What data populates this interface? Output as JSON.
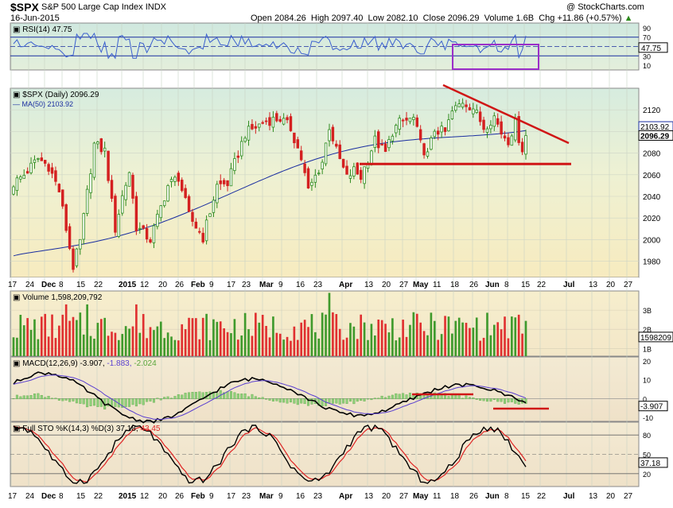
{
  "header": {
    "symbol": "$SPX",
    "name": "S&P 500 Large Cap Index",
    "exchange": "INDX",
    "date": "16-Jun-2015",
    "watermark": "@ StockCharts.com",
    "open_label": "Open",
    "open": "2084.26",
    "high_label": "High",
    "high": "2097.40",
    "low_label": "Low",
    "low": "2082.10",
    "close_label": "Close",
    "close": "2096.29",
    "volume_label": "Volume",
    "volume": "1.6B",
    "chg_label": "Chg",
    "chg": "+11.86 (+0.57%)",
    "chg_arrow": "▲"
  },
  "colors": {
    "up": "#2e8b1e",
    "down": "#d42020",
    "ma": "#1a2ea0",
    "rsi": "#3a5fcf",
    "trend": "#d01616",
    "highlight": "#9b2fc9",
    "price_bg_top": "#dbeee0",
    "price_bg_bottom": "#f6ecc4",
    "panel_bg": "#f2ead8"
  },
  "panels": {
    "rsi": {
      "label": "RSI(14) 47.75",
      "value": "47.75",
      "ticks": [
        "90",
        "70",
        "50",
        "30",
        "10"
      ]
    },
    "price": {
      "label": "$SPX (Daily) 2096.29",
      "ma_label": "MA(50) 2103.92",
      "ma_value": "2103.92",
      "close_value": "2096.29",
      "ticks": [
        "2120",
        "2100",
        "2080",
        "2060",
        "2040",
        "2020",
        "2000",
        "1980"
      ]
    },
    "volume": {
      "label": "Volume 1,598,209,792",
      "value": "1598209",
      "ticks": [
        "3B",
        "2B",
        "1B"
      ]
    },
    "macd": {
      "label": "MACD(12,26,9) -3.907,",
      "signal": "-1.883,",
      "hist": "-2.024",
      "value": "-3.907",
      "ticks": [
        "20",
        "10",
        "0",
        "-10"
      ]
    },
    "sto": {
      "label": "Full STO %K(14,3) %D(3) 37.18,",
      "d_value": "43.45",
      "value": "37.18",
      "ticks": [
        "80",
        "50",
        "20"
      ]
    }
  },
  "xaxis_labels": [
    "17",
    "24",
    "Dec",
    "8",
    "15",
    "22",
    "2015",
    "12",
    "20",
    "26",
    "Feb",
    "9",
    "17",
    "23",
    "Mar",
    "9",
    "16",
    "23",
    "Apr",
    "13",
    "20",
    "27",
    "May",
    "11",
    "18",
    "26",
    "Jun",
    "8",
    "15",
    "22",
    "Jul",
    "13",
    "20",
    "27"
  ],
  "chart_data": {
    "type": "candlestick",
    "title": "$SPX S&P 500 Large Cap Index INDX",
    "price_range": [
      1965,
      2140
    ],
    "ma50_range": [
      1985,
      2111
    ],
    "support_level": 2070,
    "resistance_line": {
      "from": {
        "date": "2015-05-15",
        "value": 2139
      },
      "to": {
        "date": "2015-06-26",
        "value": 2094
      }
    },
    "ohlc_key": [
      [
        "2014-11-28",
        2062
      ],
      [
        "2014-12-05",
        2076
      ],
      [
        "2014-12-16",
        1973
      ],
      [
        "2014-12-29",
        2090
      ],
      [
        "2015-01-16",
        2019
      ],
      [
        "2015-01-27",
        2030
      ],
      [
        "2015-02-02",
        2020
      ],
      [
        "2015-02-13",
        2096
      ],
      [
        "2015-02-25",
        2115
      ],
      [
        "2015-03-11",
        2041
      ],
      [
        "2015-03-20",
        2108
      ],
      [
        "2015-03-26",
        2056
      ],
      [
        "2015-04-01",
        2060
      ],
      [
        "2015-04-14",
        2095
      ],
      [
        "2015-04-24",
        2117
      ],
      [
        "2015-05-06",
        2080
      ],
      [
        "2015-05-13",
        2099
      ],
      [
        "2015-05-20",
        2126
      ],
      [
        "2015-06-02",
        2110
      ],
      [
        "2015-06-11",
        2108
      ],
      [
        "2015-06-12",
        2094
      ],
      [
        "2015-06-15",
        2084
      ],
      [
        "2015-06-16",
        2096.29
      ]
    ],
    "volume_range_B": [
      0.6,
      4.0
    ],
    "macd": {
      "value": -3.907,
      "signal": -1.883,
      "hist": -2.024,
      "range": [
        -12,
        22
      ]
    },
    "rsi": {
      "value": 47.75,
      "range": [
        0,
        100
      ]
    },
    "stochastic": {
      "k": 37.18,
      "d": 43.45,
      "range": [
        0,
        100
      ]
    }
  }
}
